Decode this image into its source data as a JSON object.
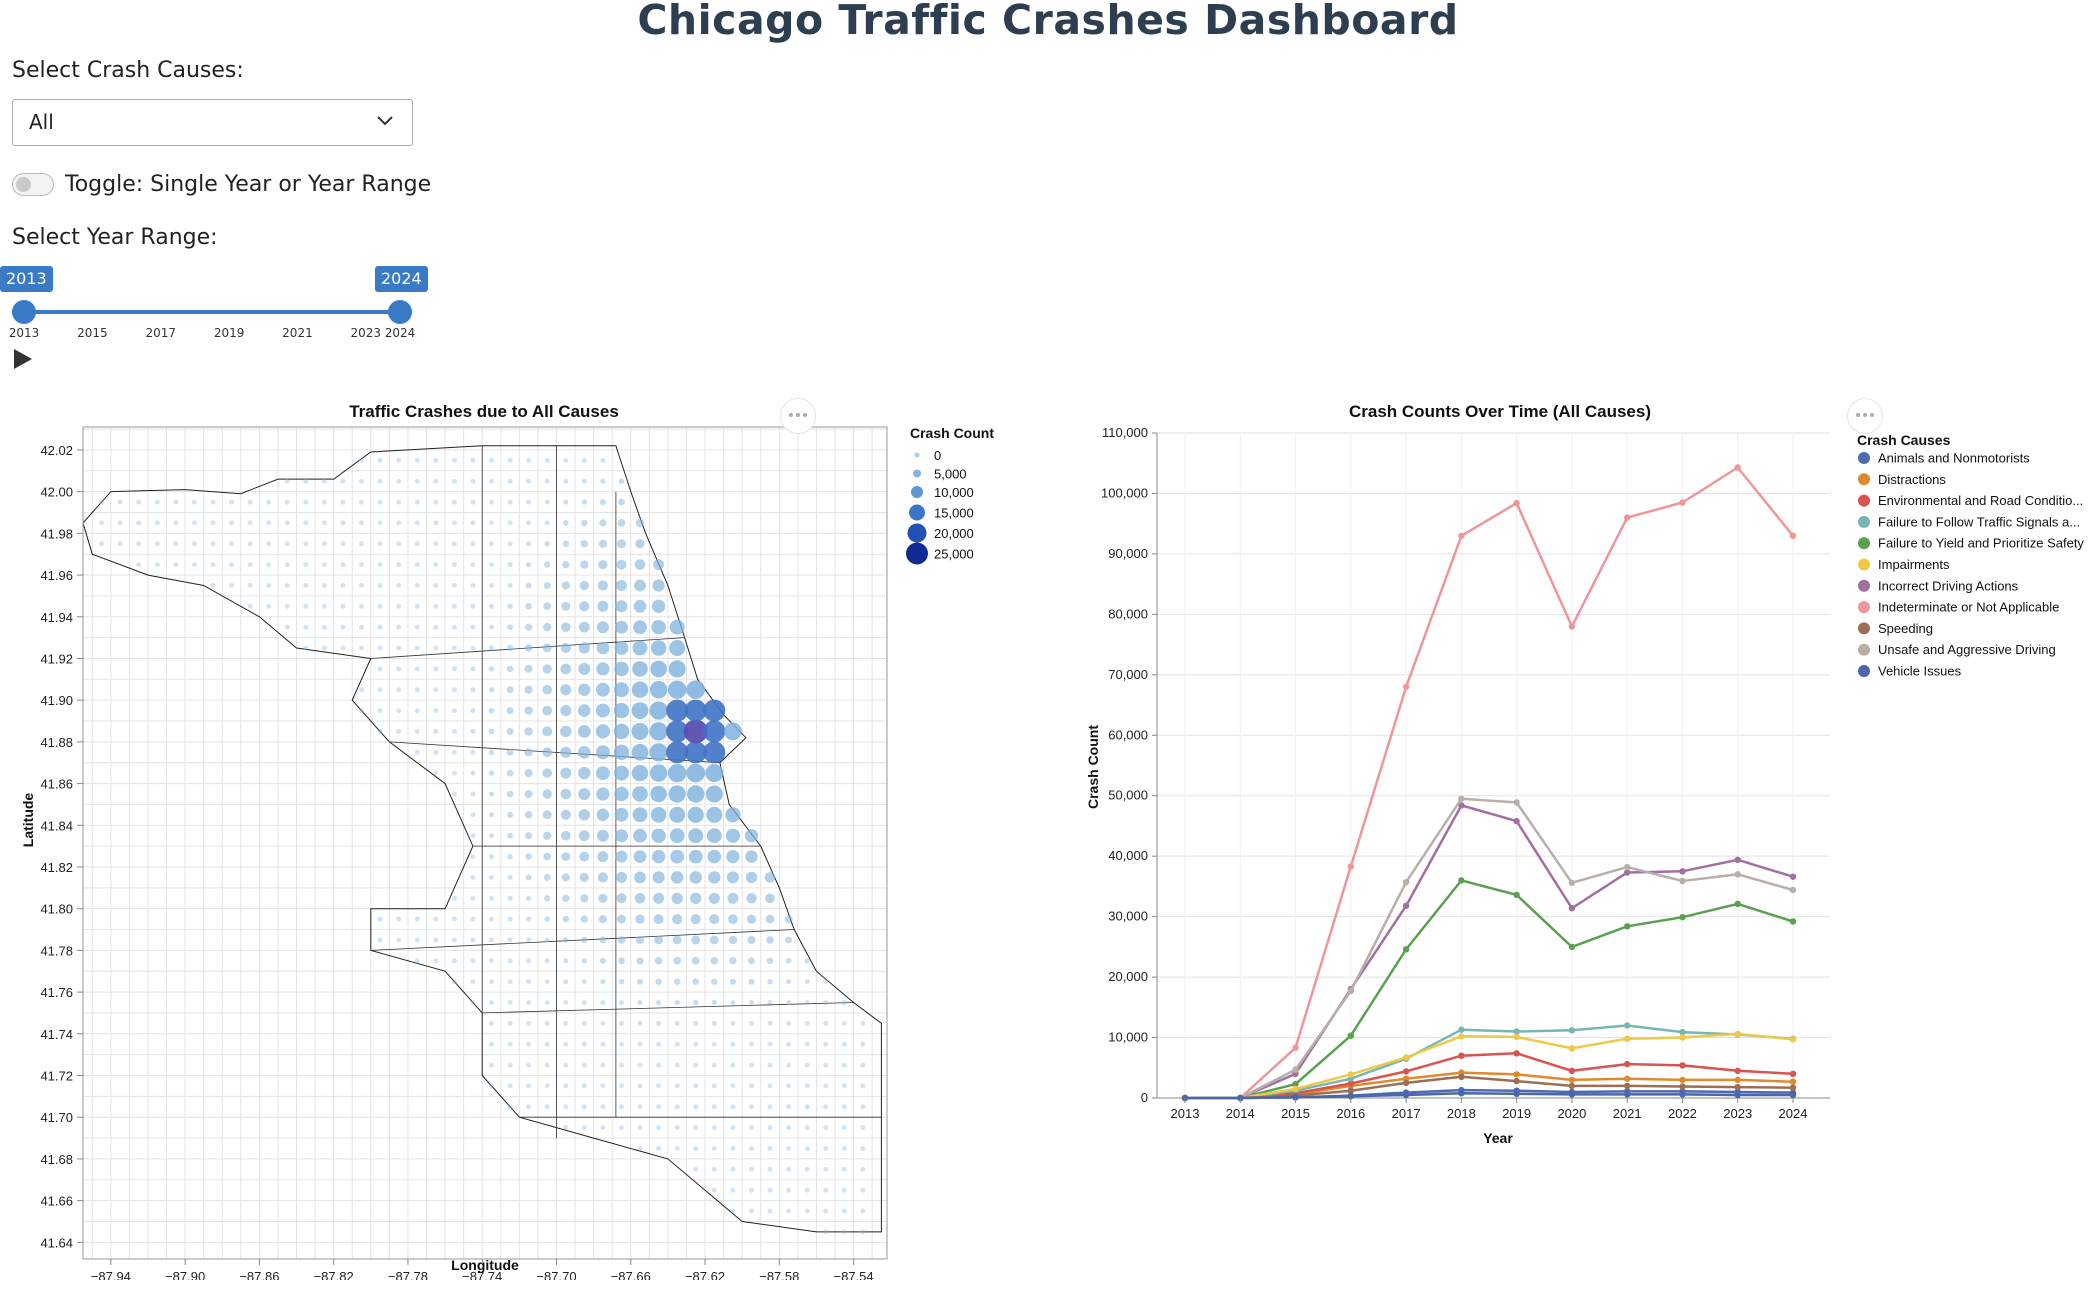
{
  "page": {
    "title": "Chicago Traffic Crashes Dashboard"
  },
  "controls": {
    "cause_label": "Select Crash Causes:",
    "cause_value": "All",
    "toggle_label": "Toggle: Single Year or Year Range",
    "toggle_on": false,
    "range_label": "Select Year Range:",
    "range_start": "2013",
    "range_end": "2024",
    "slider_ticks": [
      "2013",
      "2015",
      "2017",
      "2019",
      "2021",
      "2023",
      "2024"
    ],
    "slider_min": 2013,
    "slider_max": 2024
  },
  "map": {
    "title": "Traffic Crashes due to All Causes",
    "xlabel": "Longitude",
    "ylabel": "Latitude",
    "x_ticks": [
      "−87.94",
      "−87.90",
      "−87.86",
      "−87.82",
      "−87.78",
      "−87.74",
      "−87.70",
      "−87.66",
      "−87.62",
      "−87.58",
      "−87.54"
    ],
    "y_ticks": [
      "42.02",
      "42.00",
      "41.98",
      "41.96",
      "41.94",
      "41.92",
      "41.90",
      "41.88",
      "41.86",
      "41.84",
      "41.82",
      "41.80",
      "41.78",
      "41.76",
      "41.74",
      "41.72",
      "41.70",
      "41.68",
      "41.66",
      "41.64"
    ],
    "legend_title": "Crash Count",
    "legend_items": [
      "0",
      "5,000",
      "10,000",
      "15,000",
      "20,000",
      "25,000"
    ]
  },
  "chart_data": {
    "type": "line",
    "title": "Crash Counts Over Time (All Causes)",
    "xlabel": "Year",
    "ylabel": "Crash Count",
    "x": [
      "2013",
      "2014",
      "2015",
      "2016",
      "2017",
      "2018",
      "2019",
      "2020",
      "2021",
      "2022",
      "2023",
      "2024"
    ],
    "ylim": [
      0,
      110000
    ],
    "y_ticks": [
      "0",
      "10,000",
      "20,000",
      "30,000",
      "40,000",
      "50,000",
      "60,000",
      "70,000",
      "80,000",
      "90,000",
      "100,000",
      "110,000"
    ],
    "grid": true,
    "legend_title": "Crash Causes",
    "legend_position": "right",
    "series": [
      {
        "name": "Animals and Nonmotorists",
        "color": "#4c6bb0",
        "values": [
          0,
          0,
          100,
          400,
          900,
          1300,
          1200,
          1000,
          1100,
          1100,
          1000,
          900
        ]
      },
      {
        "name": "Distractions",
        "color": "#e08a2e",
        "values": [
          0,
          0,
          600,
          2000,
          3200,
          4200,
          3900,
          3000,
          3200,
          3000,
          3000,
          2700
        ]
      },
      {
        "name": "Environmental and Road Conditio...",
        "color": "#d9544f",
        "values": [
          0,
          0,
          800,
          2400,
          4400,
          7000,
          7400,
          4500,
          5600,
          5400,
          4500,
          4000
        ]
      },
      {
        "name": "Failure to Follow Traffic Signals a...",
        "color": "#76b7b2",
        "values": [
          0,
          0,
          1200,
          3200,
          6500,
          11300,
          11000,
          11200,
          12000,
          10900,
          10500,
          9800
        ]
      },
      {
        "name": "Failure to Yield and Prioritize Safety",
        "color": "#59a14f",
        "values": [
          0,
          0,
          2300,
          10300,
          24600,
          36000,
          33600,
          25000,
          28400,
          29900,
          32100,
          29200
        ]
      },
      {
        "name": "Impairments",
        "color": "#edc948",
        "values": [
          0,
          0,
          1500,
          3900,
          6700,
          10200,
          10100,
          8200,
          9800,
          10000,
          10600,
          9700
        ]
      },
      {
        "name": "Incorrect Driving Actions",
        "color": "#a36fa0",
        "values": [
          0,
          0,
          4000,
          18000,
          31800,
          48400,
          45800,
          31400,
          37300,
          37500,
          39400,
          36600
        ]
      },
      {
        "name": "Indeterminate or Not Applicable",
        "color": "#f0959a",
        "values": [
          0,
          0,
          8300,
          38300,
          68000,
          93000,
          98400,
          78000,
          96000,
          98500,
          104300,
          93000
        ]
      },
      {
        "name": "Speeding",
        "color": "#9c6e56",
        "values": [
          0,
          0,
          400,
          1200,
          2500,
          3500,
          2800,
          2000,
          2000,
          1900,
          1800,
          1700
        ]
      },
      {
        "name": "Unsafe and Aggressive Driving",
        "color": "#b8afa9",
        "values": [
          0,
          0,
          4700,
          17700,
          35700,
          49500,
          48900,
          35600,
          38200,
          35900,
          37000,
          34400
        ]
      },
      {
        "name": "Vehicle Issues",
        "color": "#4a66ac",
        "values": [
          0,
          0,
          100,
          300,
          500,
          800,
          700,
          600,
          600,
          600,
          500,
          500
        ]
      }
    ]
  }
}
